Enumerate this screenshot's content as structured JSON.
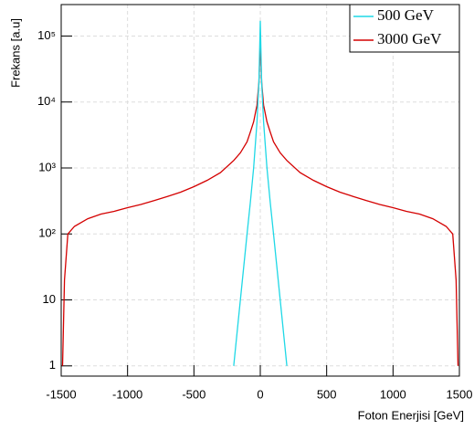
{
  "chart_data": {
    "type": "line",
    "xlabel": "Foton Enerjisi [GeV]",
    "ylabel": "Frekans [a.u]",
    "x": [
      -1490,
      -1475,
      -1450,
      -1400,
      -1300,
      -1200,
      -1100,
      -1000,
      -900,
      -800,
      -700,
      -600,
      -500,
      -400,
      -300,
      -200,
      -150,
      -100,
      -75,
      -50,
      -25,
      -10,
      0,
      10,
      25,
      50,
      75,
      100,
      150,
      200,
      300,
      400,
      500,
      600,
      700,
      800,
      900,
      1000,
      1100,
      1200,
      1300,
      1400,
      1450,
      1475,
      1490
    ],
    "series": [
      {
        "name": "500 GeV",
        "color": "#1fd8e6",
        "values": [
          null,
          null,
          null,
          null,
          null,
          null,
          null,
          null,
          null,
          null,
          null,
          null,
          null,
          null,
          null,
          1,
          10,
          100,
          300,
          1000,
          5000,
          20000,
          170000,
          20000,
          5000,
          1000,
          300,
          100,
          10,
          1,
          null,
          null,
          null,
          null,
          null,
          null,
          null,
          null,
          null,
          null,
          null,
          null,
          null,
          null,
          null
        ]
      },
      {
        "name": "3000 GeV",
        "color": "#d40000",
        "values": [
          1,
          20,
          100,
          130,
          170,
          200,
          220,
          250,
          280,
          320,
          370,
          430,
          520,
          650,
          850,
          1300,
          1700,
          2500,
          3500,
          5000,
          9000,
          20000,
          80000,
          20000,
          9000,
          5000,
          3500,
          2500,
          1700,
          1300,
          850,
          650,
          520,
          430,
          370,
          320,
          280,
          250,
          220,
          200,
          170,
          130,
          100,
          20,
          1
        ]
      }
    ],
    "xlim": [
      -1500,
      1500
    ],
    "xticks": [
      -1500,
      -1000,
      -500,
      0,
      500,
      1000,
      1500
    ],
    "ylim": [
      0.7,
      300000
    ],
    "yticks": [
      1,
      10,
      {
        "value": 100,
        "label": "10²"
      },
      {
        "value": 1000,
        "label": "10³"
      },
      {
        "value": 10000,
        "label": "10⁴"
      },
      {
        "value": 100000,
        "label": "10⁵"
      }
    ],
    "log_y": true,
    "grid": true,
    "legend": "top-right"
  }
}
